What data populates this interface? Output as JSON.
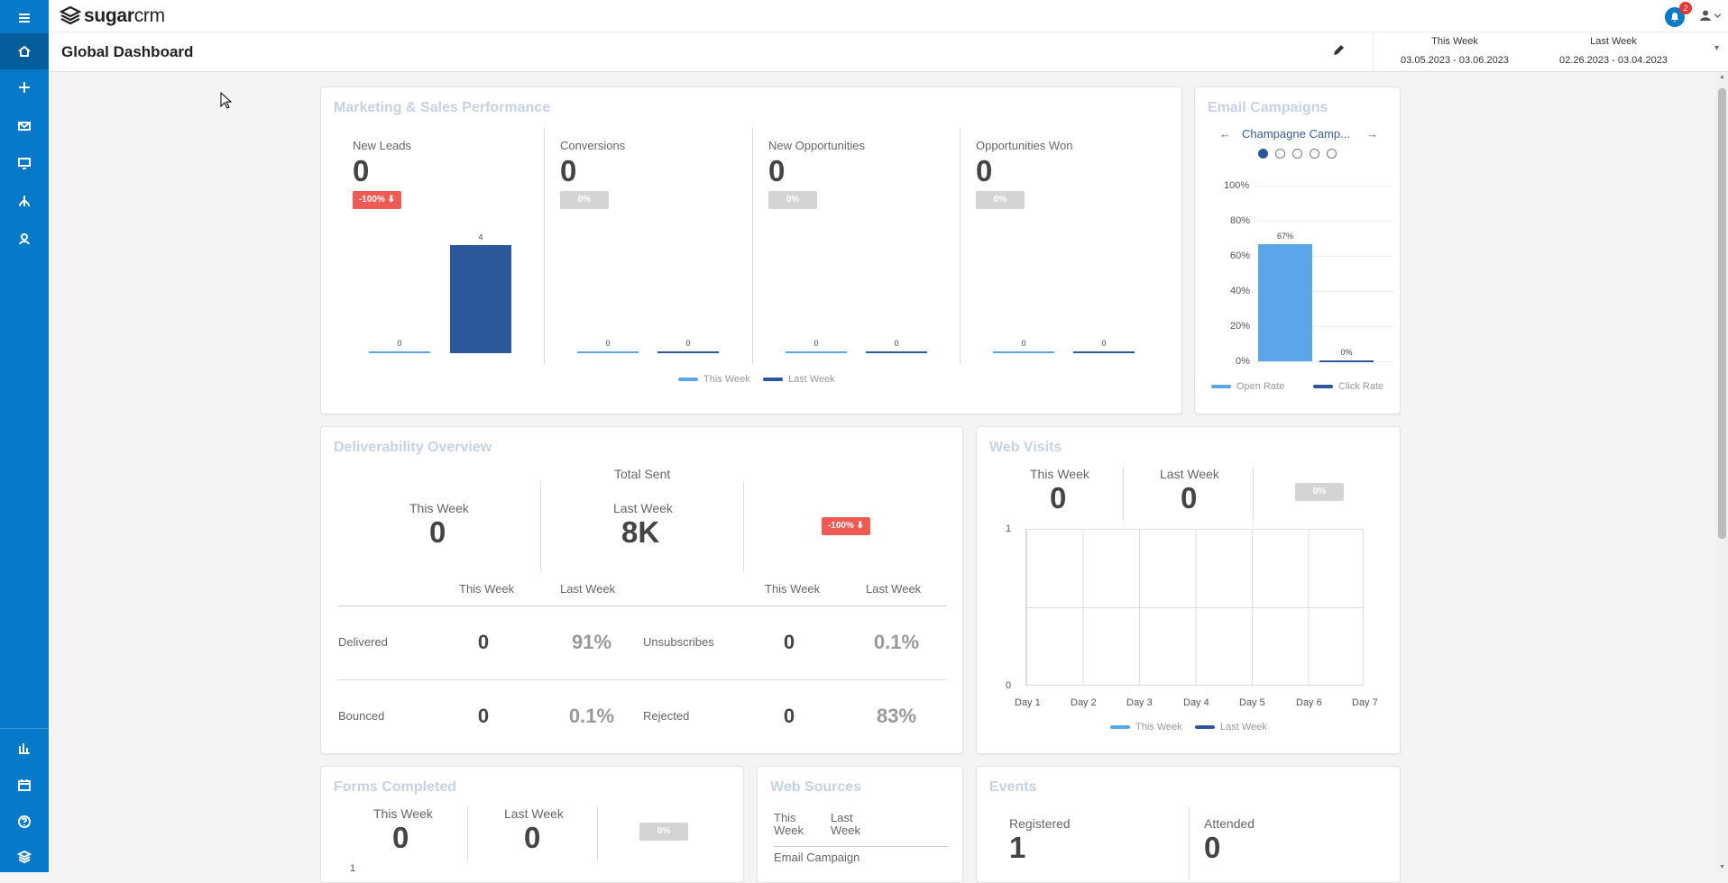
{
  "app": {
    "logo_text": "sugar",
    "logo_text2": "crm",
    "notifications": "2"
  },
  "sidebar": {
    "items": [
      "menu-icon",
      "home-icon",
      "plus-icon",
      "mail-icon",
      "monitor-icon",
      "sitemap-icon",
      "contact-icon",
      "chart-icon",
      "calendar-icon",
      "help-icon",
      "layers-icon"
    ]
  },
  "header": {
    "title": "Global Dashboard",
    "this_week_label": "This Week",
    "this_week_range": "03.05.2023 - 03.06.2023",
    "last_week_label": "Last Week",
    "last_week_range": "02.26.2023 - 03.04.2023"
  },
  "marketing": {
    "title": "Marketing & Sales Performance",
    "metrics": [
      {
        "label": "New Leads",
        "value": "0",
        "change": "-100%",
        "this_week": 0,
        "last_week": 4
      },
      {
        "label": "Conversions",
        "value": "0",
        "change": "0%",
        "this_week": 0,
        "last_week": 0
      },
      {
        "label": "New Opportunities",
        "value": "0",
        "change": "0%",
        "this_week": 0,
        "last_week": 0
      },
      {
        "label": "Opportunities Won",
        "value": "0",
        "change": "0%",
        "this_week": 0,
        "last_week": 0
      }
    ],
    "bar_labels": [
      "0",
      "4",
      "0",
      "0",
      "0",
      "0",
      "0",
      "0"
    ],
    "legend_this": "This Week",
    "legend_last": "Last Week"
  },
  "email_campaigns": {
    "title": "Email Campaigns",
    "campaign": "Champagne Camp...",
    "yticks": [
      "100%",
      "80%",
      "60%",
      "40%",
      "20%",
      "0%"
    ],
    "open_rate_label": "67%",
    "click_rate_label": "0%",
    "legend_open": "Open Rate",
    "legend_click": "Click Rate"
  },
  "deliverability": {
    "title": "Deliverability Overview",
    "total_sent": "Total Sent",
    "this_week": "This Week",
    "last_week": "Last Week",
    "this_week_value": "0",
    "last_week_value": "8K",
    "change": "-100%",
    "rows": [
      {
        "label": "Delivered",
        "tw": "0",
        "lw": "91%",
        "label2": "Unsubscribes",
        "tw2": "0",
        "lw2": "0.1%"
      },
      {
        "label": "Bounced",
        "tw": "0",
        "lw": "0.1%",
        "label2": "Rejected",
        "tw2": "0",
        "lw2": "83%"
      }
    ]
  },
  "web_visits": {
    "title": "Web Visits",
    "this_week": "This Week",
    "last_week": "Last Week",
    "tw_value": "0",
    "lw_value": "0",
    "change": "0%",
    "y_top": "1",
    "y_bottom": "0",
    "days": [
      "Day 1",
      "Day 2",
      "Day 3",
      "Day 4",
      "Day 5",
      "Day 6",
      "Day 7"
    ],
    "legend_this": "This Week",
    "legend_last": "Last Week"
  },
  "forms": {
    "title": "Forms Completed",
    "this_week": "This Week",
    "last_week": "Last Week",
    "tw": "0",
    "lw": "0",
    "change": "0%",
    "y_top": "1"
  },
  "web_sources": {
    "title": "Web Sources",
    "this_week": "This Week",
    "last_week": "Last Week",
    "row": "Email Campaign"
  },
  "events": {
    "title": "Events",
    "registered": "Registered",
    "registered_value": "1",
    "attended": "Attended",
    "attended_value": "0"
  },
  "colors": {
    "brand": "#0679c8",
    "this_week": "#5ba6e8",
    "last_week": "#2c579b",
    "red": "#ee5b55"
  }
}
